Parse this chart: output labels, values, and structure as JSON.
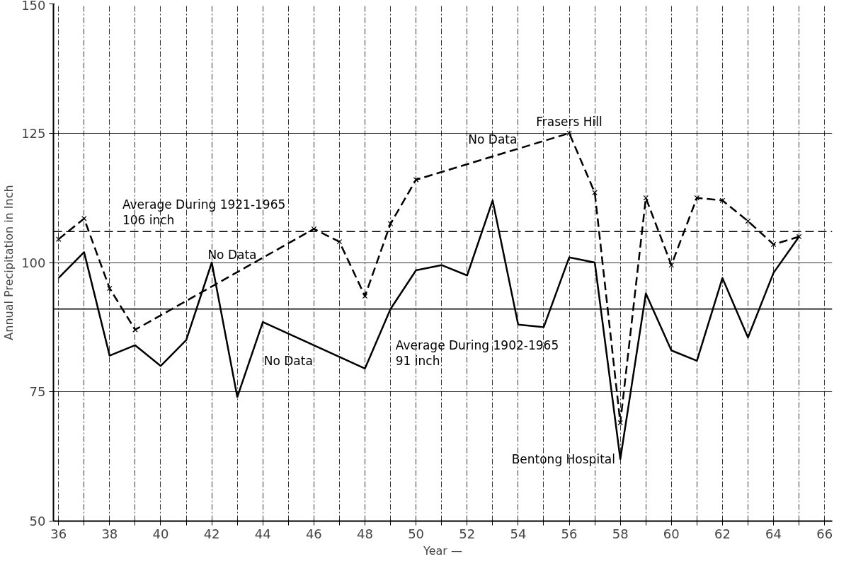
{
  "chart_data": {
    "type": "line",
    "xlabel": "Year —",
    "ylabel": "Annual Precipitation in Inch",
    "xlim": [
      35.8,
      66.3
    ],
    "ylim": [
      50,
      150
    ],
    "xticks": [
      36,
      {
        "value": 37,
        "label": null
      },
      38,
      {
        "value": 39,
        "label": null
      },
      40,
      {
        "value": 41,
        "label": null
      },
      42,
      {
        "value": 43,
        "label": null
      },
      44,
      {
        "value": 45,
        "label": null
      },
      46,
      {
        "value": 47,
        "label": null
      },
      48,
      {
        "value": 49,
        "label": null
      },
      50,
      {
        "value": 51,
        "label": null
      },
      52,
      {
        "value": 53,
        "label": null
      },
      54,
      {
        "value": 55,
        "label": null
      },
      56,
      {
        "value": 57,
        "label": null
      },
      58,
      {
        "value": 59,
        "label": null
      },
      60,
      {
        "value": 61,
        "label": null
      },
      62,
      {
        "value": 63,
        "label": null
      },
      64,
      {
        "value": 65,
        "label": null
      },
      66
    ],
    "yticks": [
      50,
      75,
      100,
      125,
      150
    ],
    "grid": true,
    "series": [
      {
        "name": "Frasers Hill",
        "color": "#000000",
        "marker": "cross",
        "line_style": "dashed",
        "x": [
          36,
          37,
          38,
          39,
          46,
          47,
          48,
          49,
          50,
          56,
          57,
          58,
          59,
          60,
          61,
          62,
          63,
          64,
          65
        ],
        "values": [
          104.5,
          108.5,
          95,
          87,
          106.5,
          104,
          93.5,
          107.5,
          116,
          125,
          113.5,
          69,
          112.5,
          99.5,
          112.5,
          112,
          108,
          103.5,
          105
        ]
      },
      {
        "name": "Bentong Hospital",
        "color": "#000000",
        "marker": "none",
        "line_style": "solid",
        "x": [
          36,
          37,
          38,
          39,
          40,
          41,
          42,
          43,
          44,
          48,
          49,
          50,
          51,
          52,
          53,
          54,
          55,
          56,
          57,
          58,
          59,
          60,
          61,
          62,
          63,
          64,
          65
        ],
        "values": [
          97,
          102,
          82,
          84,
          80,
          85,
          100,
          74,
          88.5,
          79.5,
          91,
          98.5,
          99.5,
          97.5,
          112,
          88,
          87.5,
          101,
          100,
          62,
          94,
          83,
          81,
          97,
          85.5,
          98,
          105
        ]
      }
    ],
    "ref_lines": [
      {
        "axis": "y",
        "value": 106,
        "line_style": "dashed",
        "color": "#000000",
        "label": "Average During 1921-1965\n106 inch"
      },
      {
        "axis": "y",
        "value": 91,
        "line_style": "solid",
        "color": "#000000",
        "label": "Average During 1902-1965\n91 inch"
      }
    ],
    "annotations": [
      "No Data",
      "No Data",
      "No Data"
    ]
  }
}
